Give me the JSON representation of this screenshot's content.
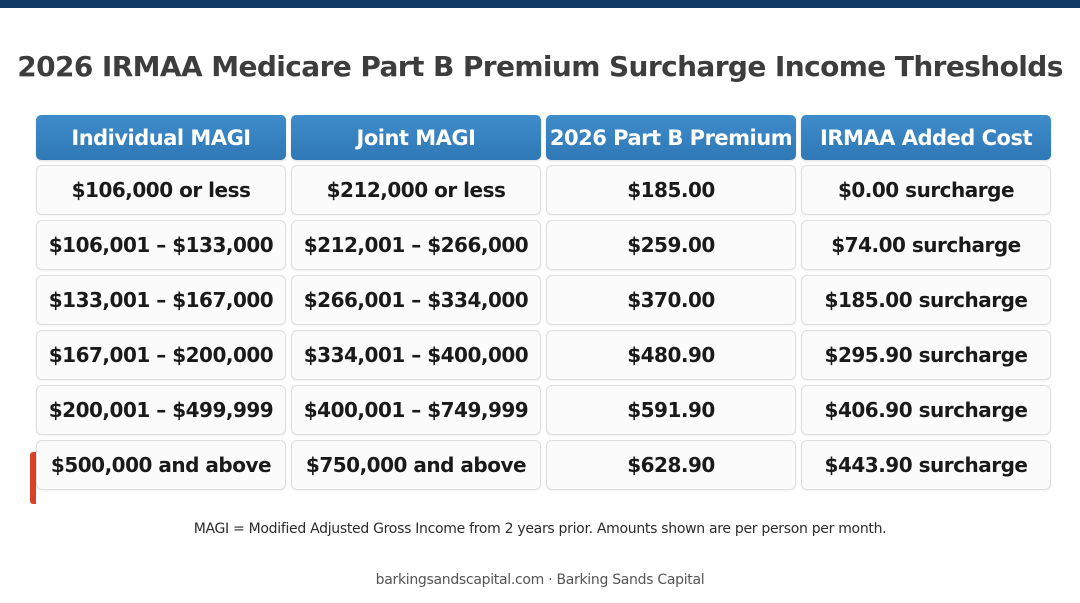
{
  "title": "2026 IRMAA Medicare Part B Premium Surcharge Income Thresholds",
  "colors": {
    "header_bg": "#3584c4",
    "top_bar": "#123a66",
    "highlight_marker": "#d9412b"
  },
  "table": {
    "headers": [
      "Individual MAGI",
      "Joint MAGI",
      "2026 Part B Premium",
      "IRMAA Added Cost"
    ],
    "rows": [
      [
        "$106,000 or less",
        "$212,000 or less",
        "$185.00",
        "$0.00 surcharge"
      ],
      [
        "$106,001 – $133,000",
        "$212,001 – $266,000",
        "$259.00",
        "$74.00 surcharge"
      ],
      [
        "$133,001 – $167,000",
        "$266,001 – $334,000",
        "$370.00",
        "$185.00 surcharge"
      ],
      [
        "$167,001 – $200,000",
        "$334,001 – $400,000",
        "$480.90",
        "$295.90 surcharge"
      ],
      [
        "$200,001 – $499,999",
        "$400,001 – $749,999",
        "$591.90",
        "$406.90 surcharge"
      ],
      [
        "$500,000 and above",
        "$750,000 and above",
        "$628.90",
        "$443.90 surcharge"
      ]
    ]
  },
  "footnote": "MAGI = Modified Adjusted Gross Income from 2 years prior. Amounts shown are per person per month.",
  "source": "barkingsandscapital.com · Barking Sands Capital"
}
